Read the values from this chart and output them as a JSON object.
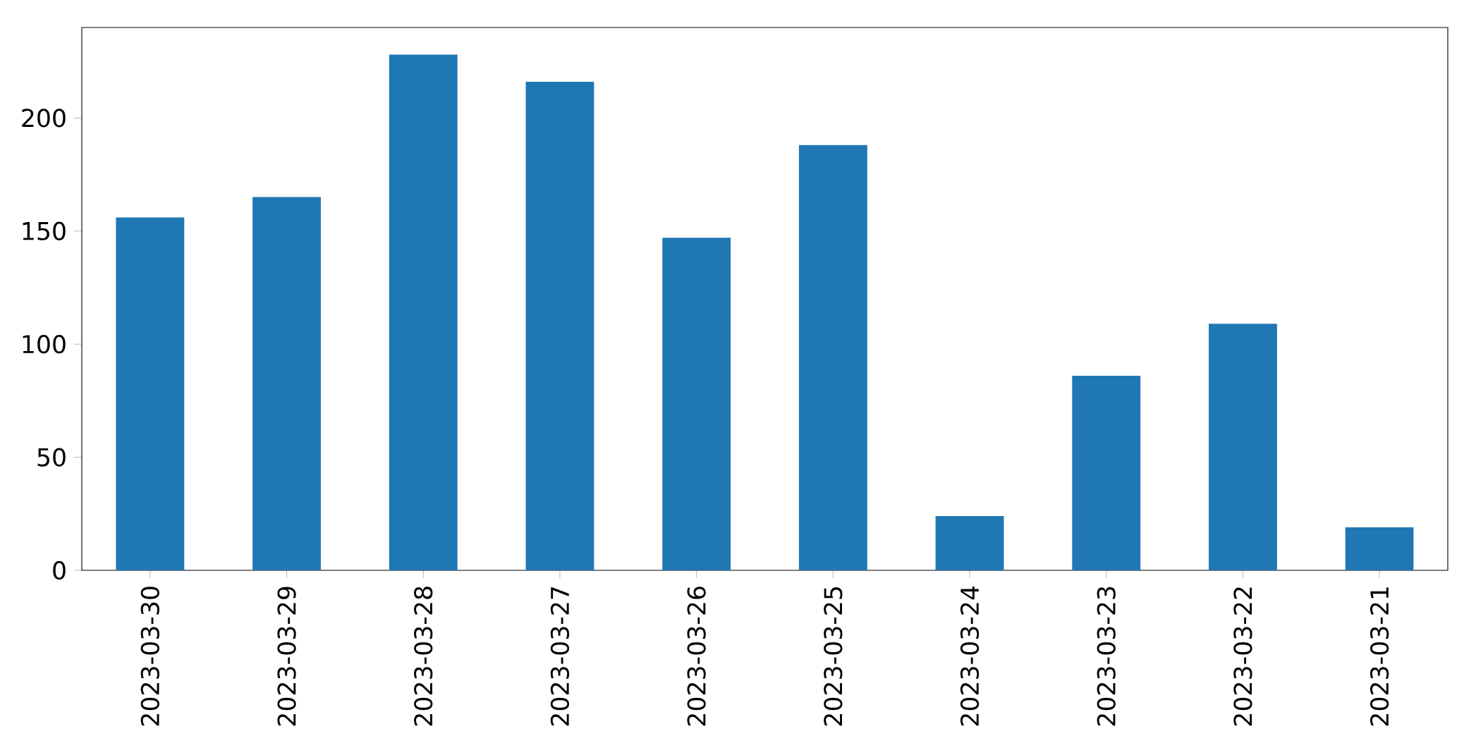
{
  "chart_data": {
    "type": "bar",
    "categories": [
      "2023-03-30",
      "2023-03-29",
      "2023-03-28",
      "2023-03-27",
      "2023-03-26",
      "2023-03-25",
      "2023-03-24",
      "2023-03-23",
      "2023-03-22",
      "2023-03-21"
    ],
    "values": [
      156,
      165,
      228,
      216,
      147,
      188,
      24,
      86,
      109,
      19
    ],
    "color": "#1f77b4",
    "ylim": [
      0,
      240
    ],
    "yticks": [
      0,
      50,
      100,
      150,
      200
    ]
  }
}
